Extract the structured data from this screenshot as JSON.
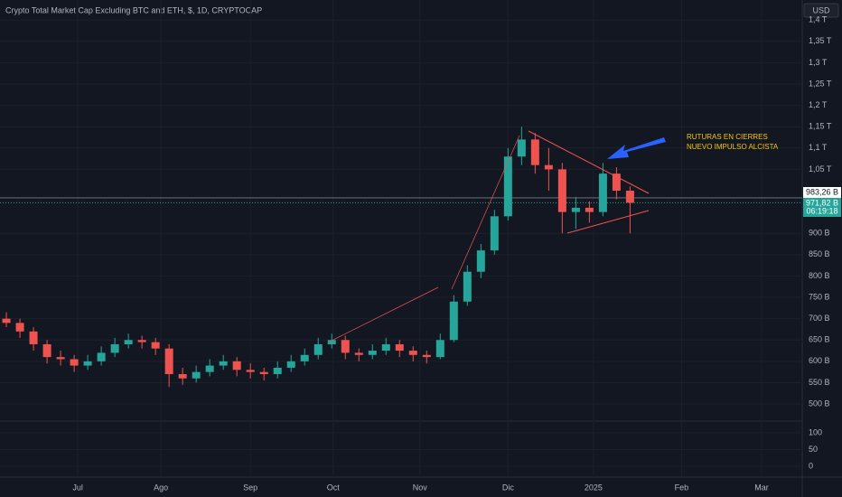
{
  "chart_data": {
    "type": "candlestick",
    "title": "Crypto Total Market Cap Excluding BTC and ETH, $, 1D, CRYPTOCAP",
    "currency": "USD",
    "annotation": [
      "RUTURAS EN CIERRES",
      "NUEVO IMPULSO ALCISTA"
    ],
    "up_color": "#26a69a",
    "down_color": "#ef5350",
    "open": [
      700,
      690,
      670,
      640,
      610,
      605,
      590,
      600,
      620,
      640,
      650,
      645,
      630,
      570,
      560,
      575,
      590,
      600,
      580,
      575,
      570,
      585,
      600,
      615,
      640,
      650,
      620,
      615,
      625,
      640,
      625,
      615,
      610,
      650,
      740,
      810,
      860,
      940,
      1080,
      1120,
      1060,
      1050,
      950,
      960,
      950,
      1040,
      1000
    ],
    "high": [
      715,
      700,
      680,
      650,
      625,
      615,
      615,
      635,
      655,
      665,
      660,
      655,
      640,
      585,
      590,
      605,
      615,
      610,
      595,
      585,
      600,
      615,
      630,
      655,
      665,
      660,
      630,
      640,
      655,
      650,
      635,
      625,
      665,
      755,
      825,
      875,
      955,
      1100,
      1150,
      1135,
      1100,
      1065,
      985,
      975,
      1065,
      1055,
      1010
    ],
    "low": [
      680,
      655,
      625,
      595,
      590,
      575,
      580,
      590,
      610,
      630,
      630,
      615,
      540,
      545,
      550,
      565,
      580,
      565,
      560,
      555,
      560,
      575,
      590,
      605,
      630,
      605,
      600,
      605,
      615,
      610,
      600,
      595,
      605,
      645,
      730,
      795,
      850,
      930,
      1060,
      1040,
      1000,
      900,
      910,
      925,
      940,
      980,
      900
    ],
    "close": [
      690,
      670,
      640,
      610,
      605,
      590,
      600,
      620,
      640,
      650,
      645,
      630,
      570,
      560,
      575,
      590,
      600,
      580,
      575,
      570,
      585,
      600,
      615,
      640,
      650,
      620,
      615,
      625,
      640,
      625,
      615,
      610,
      650,
      740,
      810,
      860,
      940,
      1080,
      1120,
      1060,
      1050,
      950,
      960,
      950,
      1040,
      1000,
      971.82
    ],
    "xlim": [
      -0.47,
      58.7
    ],
    "xticks": [
      {
        "value": 5.27,
        "label": "Jul"
      },
      {
        "value": 11.4,
        "label": "Ago"
      },
      {
        "value": 18,
        "label": "Sep"
      },
      {
        "value": 24.1,
        "label": "Oct"
      },
      {
        "value": 30.5,
        "label": "Nov"
      },
      {
        "value": 37,
        "label": "Dic"
      },
      {
        "value": 43.3,
        "label": "2025"
      },
      {
        "value": 49.8,
        "label": "Feb"
      },
      {
        "value": 55.7,
        "label": "Mar"
      }
    ],
    "ylim": [
      462,
      1447
    ],
    "yticks": [
      {
        "value": 1400,
        "label": "1,4 T"
      },
      {
        "value": 1350,
        "label": "1,35 T"
      },
      {
        "value": 1300,
        "label": "1,3 T"
      },
      {
        "value": 1250,
        "label": "1,25 T"
      },
      {
        "value": 1200,
        "label": "1,2 T"
      },
      {
        "value": 1150,
        "label": "1,15 T"
      },
      {
        "value": 1100,
        "label": "1,1 T"
      },
      {
        "value": 1050,
        "label": "1,05 T"
      },
      {
        "value": 900,
        "label": "900 B"
      },
      {
        "value": 850,
        "label": "850 B"
      },
      {
        "value": 800,
        "label": "800 B"
      },
      {
        "value": 750,
        "label": "750 B"
      },
      {
        "value": 700,
        "label": "700 B"
      },
      {
        "value": 650,
        "label": "650 B"
      },
      {
        "value": 600,
        "label": "600 B"
      },
      {
        "value": 550,
        "label": "550 B"
      },
      {
        "value": 500,
        "label": "500 B"
      }
    ],
    "reference_price": {
      "value": 983.26,
      "label": "983,26 B"
    },
    "last_price": {
      "value": 971.82,
      "label": "971,82 B"
    },
    "countdown": "06:19:18",
    "indicator": {
      "ylim": [
        -24,
        124
      ],
      "yticks": [
        100,
        50,
        0
      ]
    }
  }
}
